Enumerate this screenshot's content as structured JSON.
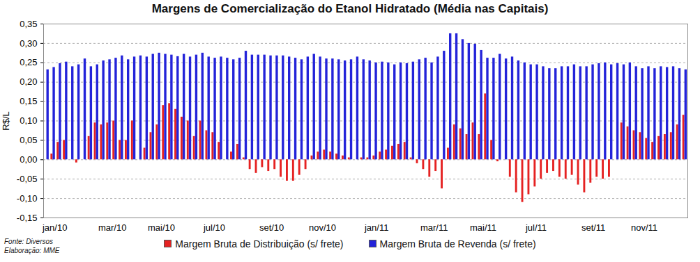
{
  "chart_data": {
    "type": "bar",
    "title": "Margens de Comercialização do Etanol Hidratado (Média nas Capitais)",
    "y_label": "R$/L",
    "notes": [
      "Fonte: Diversos",
      "Elaboração: MME"
    ],
    "categories": [
      "jan/10",
      null,
      null,
      null,
      null,
      null,
      null,
      null,
      null,
      "mar/10",
      null,
      null,
      null,
      null,
      null,
      null,
      null,
      "mai/10",
      null,
      null,
      null,
      null,
      null,
      null,
      null,
      null,
      "jul/10",
      null,
      null,
      null,
      null,
      null,
      null,
      null,
      null,
      "set/10",
      null,
      null,
      null,
      null,
      null,
      null,
      null,
      "nov/10",
      null,
      null,
      null,
      null,
      null,
      null,
      null,
      null,
      "jan/11",
      null,
      null,
      null,
      null,
      null,
      null,
      null,
      null,
      "mar/11",
      null,
      null,
      null,
      null,
      null,
      null,
      null,
      "mai/11",
      null,
      null,
      null,
      null,
      null,
      null,
      null,
      null,
      "jul/11",
      null,
      null,
      null,
      null,
      null,
      null,
      null,
      null,
      "set/11",
      null,
      null,
      null,
      null,
      null,
      null,
      null,
      "nov/11",
      null,
      null,
      null,
      null,
      null,
      null,
      null,
      null
    ],
    "series": [
      {
        "name": "Margem Bruta de Distribuição (s/ frete)",
        "color": "#e52222",
        "values": [
          0.0,
          0.015,
          0.045,
          0.05,
          0.0,
          -0.008,
          0.0,
          0.06,
          0.095,
          0.09,
          0.095,
          0.1,
          0.05,
          0.05,
          0.1,
          0.0,
          0.03,
          0.07,
          0.09,
          0.14,
          0.145,
          0.13,
          0.11,
          0.1,
          0.06,
          0.1,
          0.075,
          0.07,
          0.045,
          0.0,
          0.02,
          0.04,
          0.005,
          -0.025,
          -0.035,
          -0.02,
          -0.03,
          -0.025,
          -0.045,
          -0.055,
          -0.055,
          -0.04,
          -0.025,
          0.01,
          0.02,
          0.025,
          0.02,
          0.015,
          0.01,
          0.005,
          0.0,
          0.005,
          0.005,
          0.01,
          0.02,
          0.025,
          0.035,
          0.04,
          0.045,
          0.005,
          -0.01,
          -0.025,
          -0.045,
          -0.03,
          -0.075,
          0.03,
          0.09,
          0.08,
          0.065,
          0.095,
          0.065,
          0.17,
          0.05,
          -0.005,
          0.0,
          -0.045,
          -0.085,
          -0.11,
          -0.09,
          -0.07,
          -0.05,
          -0.035,
          -0.03,
          -0.045,
          -0.05,
          -0.04,
          -0.065,
          -0.085,
          -0.06,
          -0.045,
          -0.05,
          -0.045,
          0.0,
          0.095,
          0.085,
          0.075,
          0.07,
          0.055,
          0.045,
          0.06,
          0.065,
          0.07,
          0.09,
          0.115
        ]
      },
      {
        "name": "Margem Bruta de Revenda (s/ frete)",
        "color": "#2323d9",
        "values": [
          0.232,
          0.238,
          0.248,
          0.252,
          0.24,
          0.245,
          0.26,
          0.24,
          0.245,
          0.255,
          0.258,
          0.262,
          0.268,
          0.258,
          0.265,
          0.268,
          0.265,
          0.272,
          0.275,
          0.272,
          0.27,
          0.266,
          0.272,
          0.265,
          0.27,
          0.275,
          0.265,
          0.262,
          0.265,
          0.262,
          0.258,
          0.262,
          0.28,
          0.27,
          0.27,
          0.27,
          0.268,
          0.268,
          0.268,
          0.265,
          0.262,
          0.258,
          0.265,
          0.272,
          0.265,
          0.26,
          0.26,
          0.258,
          0.255,
          0.258,
          0.265,
          0.258,
          0.255,
          0.25,
          0.252,
          0.25,
          0.245,
          0.25,
          0.248,
          0.252,
          0.258,
          0.262,
          0.25,
          0.265,
          0.28,
          0.325,
          0.325,
          0.31,
          0.3,
          0.298,
          0.282,
          0.262,
          0.262,
          0.272,
          0.26,
          0.265,
          0.255,
          0.25,
          0.245,
          0.245,
          0.24,
          0.235,
          0.235,
          0.24,
          0.24,
          0.245,
          0.24,
          0.24,
          0.245,
          0.248,
          0.25,
          0.245,
          0.248,
          0.245,
          0.25,
          0.24,
          0.235,
          0.24,
          0.235,
          0.24,
          0.238,
          0.24,
          0.235,
          0.232
        ]
      }
    ],
    "ylim": [
      -0.15,
      0.35
    ],
    "yticks": [
      {
        "value": -0.15,
        "label": "-0,15"
      },
      {
        "value": -0.1,
        "label": "-0,10"
      },
      {
        "value": -0.05,
        "label": "-0,05"
      },
      {
        "value": 0,
        "label": "0,00"
      },
      {
        "value": 0.05,
        "label": "0,05"
      },
      {
        "value": 0.1,
        "label": "0,10"
      },
      {
        "value": 0.15,
        "label": "0,15"
      },
      {
        "value": 0.2,
        "label": "0,20"
      },
      {
        "value": 0.25,
        "label": "0,25"
      },
      {
        "value": 0.3,
        "label": "0,30"
      },
      {
        "value": 0.35,
        "label": "0,35"
      }
    ],
    "grid": true,
    "legend": "bottom"
  }
}
